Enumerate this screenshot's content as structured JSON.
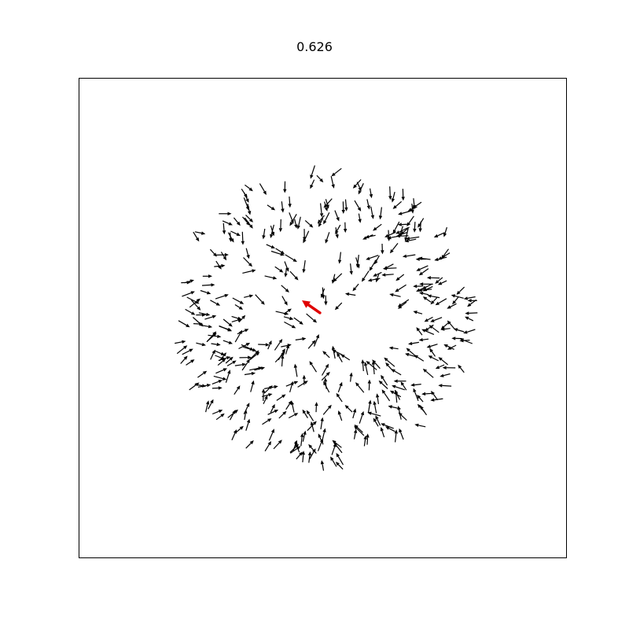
{
  "chart_data": {
    "type": "quiver",
    "title": "0.626",
    "xlabel": "",
    "ylabel": "",
    "grid": false,
    "axes_ticks": false,
    "arrow_color": "#000000",
    "highlight_color": "#e00000",
    "field": {
      "num_arrows": 420,
      "inner_radius": 0.025,
      "outer_radius": 0.32,
      "seed": 626
    },
    "highlighted_arrow": {
      "x": 0.495,
      "y": 0.51,
      "dx": -0.037,
      "dy": 0.026
    }
  }
}
